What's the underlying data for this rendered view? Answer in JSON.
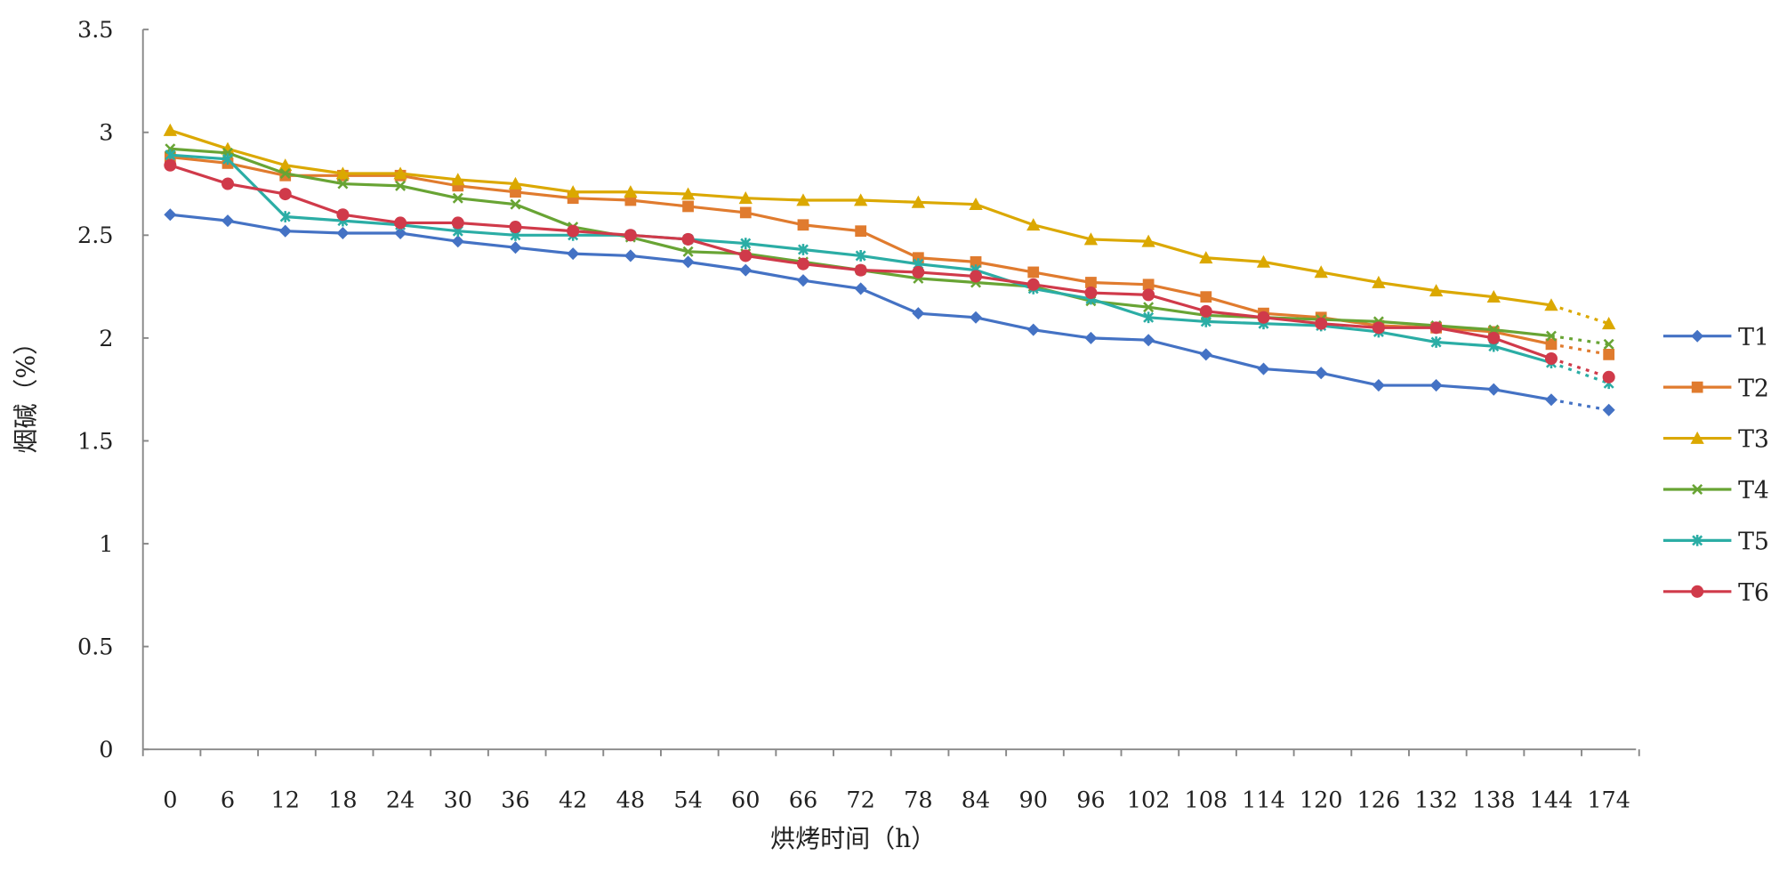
{
  "chart_data": {
    "type": "line",
    "title": "",
    "xlabel": "烘烤时间（h）",
    "ylabel": "烟碱（%）",
    "ylim": [
      0,
      3.5
    ],
    "yticks": [
      "0",
      "0.5",
      "1",
      "1.5",
      "2",
      "2.5",
      "3",
      "3.5"
    ],
    "categories": [
      "0",
      "6",
      "12",
      "18",
      "24",
      "30",
      "36",
      "42",
      "48",
      "54",
      "60",
      "66",
      "72",
      "78",
      "84",
      "90",
      "96",
      "102",
      "108",
      "114",
      "120",
      "126",
      "132",
      "138",
      "144",
      "174"
    ],
    "grid": false,
    "legend": "right",
    "last_segment_style": "dotted",
    "series": [
      {
        "name": "T1",
        "color": "#4472C4",
        "marker": "diamond",
        "values": [
          2.6,
          2.57,
          2.52,
          2.51,
          2.51,
          2.47,
          2.44,
          2.41,
          2.4,
          2.37,
          2.33,
          2.28,
          2.24,
          2.12,
          2.1,
          2.04,
          2.0,
          1.99,
          1.92,
          1.85,
          1.83,
          1.77,
          1.77,
          1.75,
          1.7,
          1.65
        ]
      },
      {
        "name": "T2",
        "color": "#E07B2E",
        "marker": "square",
        "values": [
          2.88,
          2.85,
          2.79,
          2.79,
          2.79,
          2.74,
          2.71,
          2.68,
          2.67,
          2.64,
          2.61,
          2.55,
          2.52,
          2.39,
          2.37,
          2.32,
          2.27,
          2.26,
          2.2,
          2.12,
          2.1,
          2.06,
          2.05,
          2.03,
          1.97,
          1.92
        ]
      },
      {
        "name": "T3",
        "color": "#DBA800",
        "marker": "triangle",
        "values": [
          3.01,
          2.92,
          2.84,
          2.8,
          2.8,
          2.77,
          2.75,
          2.71,
          2.71,
          2.7,
          2.68,
          2.67,
          2.67,
          2.66,
          2.65,
          2.55,
          2.48,
          2.47,
          2.39,
          2.37,
          2.32,
          2.27,
          2.23,
          2.2,
          2.16,
          2.07
        ]
      },
      {
        "name": "T4",
        "color": "#68A434",
        "marker": "x",
        "values": [
          2.92,
          2.9,
          2.8,
          2.75,
          2.74,
          2.68,
          2.65,
          2.54,
          2.49,
          2.42,
          2.41,
          2.37,
          2.33,
          2.29,
          2.27,
          2.25,
          2.18,
          2.15,
          2.11,
          2.1,
          2.09,
          2.08,
          2.06,
          2.04,
          2.01,
          1.97
        ]
      },
      {
        "name": "T5",
        "color": "#2BADA5",
        "marker": "asterisk",
        "values": [
          2.89,
          2.87,
          2.59,
          2.57,
          2.55,
          2.52,
          2.5,
          2.5,
          2.5,
          2.48,
          2.46,
          2.43,
          2.4,
          2.36,
          2.33,
          2.24,
          2.19,
          2.1,
          2.08,
          2.07,
          2.06,
          2.03,
          1.98,
          1.96,
          1.88,
          1.78
        ]
      },
      {
        "name": "T6",
        "color": "#D03A4A",
        "marker": "circle",
        "values": [
          2.84,
          2.75,
          2.7,
          2.6,
          2.56,
          2.56,
          2.54,
          2.52,
          2.5,
          2.48,
          2.4,
          2.36,
          2.33,
          2.32,
          2.3,
          2.26,
          2.22,
          2.21,
          2.13,
          2.1,
          2.07,
          2.05,
          2.05,
          2.0,
          1.9,
          1.81
        ]
      }
    ]
  }
}
